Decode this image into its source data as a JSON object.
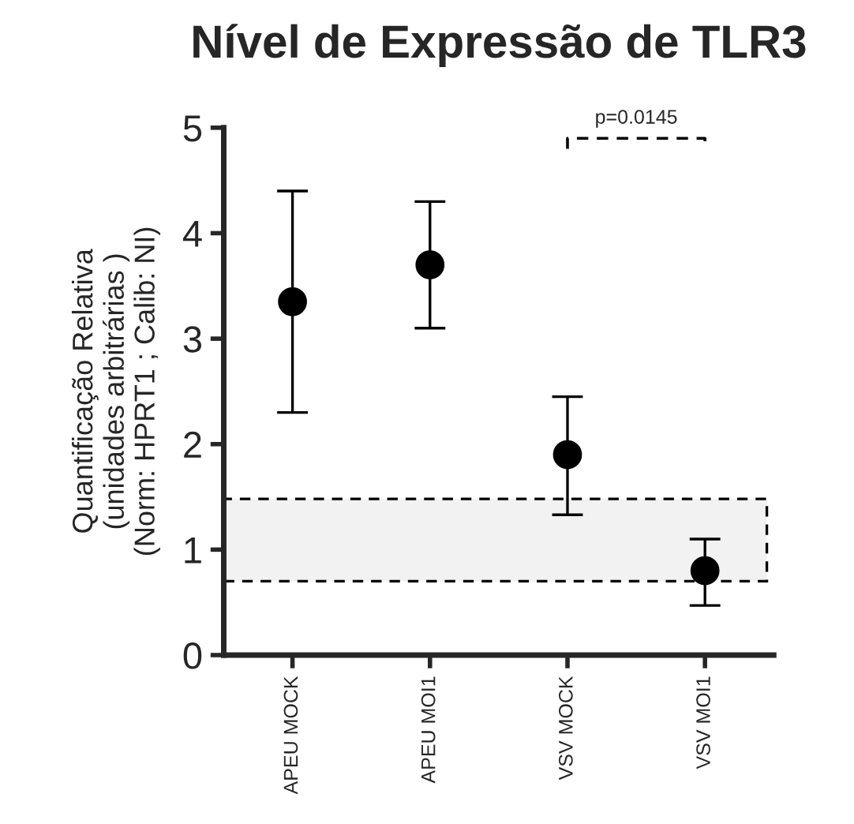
{
  "chart_data": {
    "type": "scatter",
    "title": "Nível de Expressão de TLR3",
    "ylabel": "Quantificação Relativa\n(unidades arbitrárias )\n(Norm: HPRT1 ; Calib: NI)",
    "categories": [
      "APEU MOCK",
      "APEU MOI1",
      "VSV MOCK",
      "VSV MOI1"
    ],
    "series": [
      {
        "color": "#000000",
        "values": [
          3.35,
          3.7,
          1.9,
          0.8
        ],
        "errors": [
          [
            2.3,
            4.4
          ],
          [
            3.1,
            4.3
          ],
          [
            1.33,
            2.45
          ],
          [
            0.47,
            1.1
          ]
        ]
      }
    ],
    "ylim": [
      0,
      5
    ],
    "yticks": [
      0,
      1,
      2,
      3,
      4,
      5
    ],
    "bands": [
      {
        "axis": "y",
        "from": 0.7,
        "to": 1.48,
        "color": "#f2f2f2"
      }
    ],
    "annotations": [
      "p=0.0145"
    ],
    "marker": "circle",
    "grid": false,
    "legend": false
  }
}
